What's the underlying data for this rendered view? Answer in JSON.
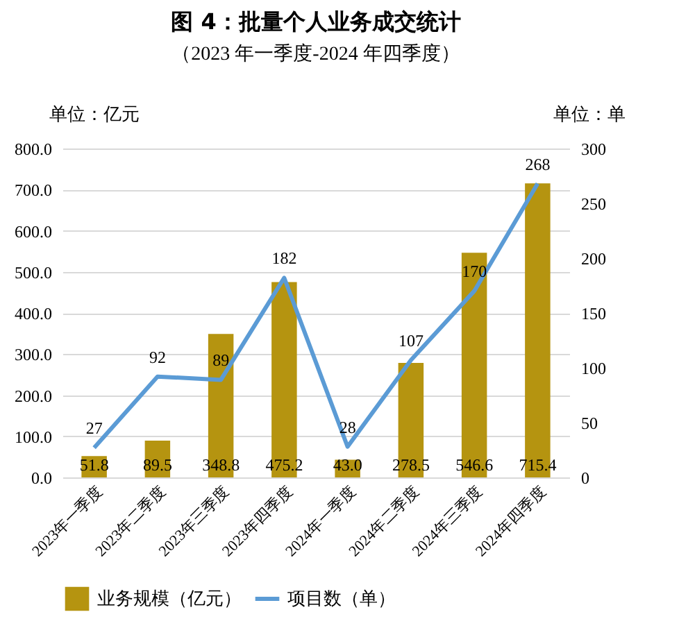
{
  "chart_data": {
    "type": "bar",
    "title": "图 4：批量个人业务成交统计",
    "subtitle": "（2023 年一季度-2024 年四季度）",
    "ylabel": "单位：亿元",
    "y2label": "单位：单",
    "categories": [
      "2023年一季度",
      "2023年二季度",
      "2023年三季度",
      "2023年四季度",
      "2024年一季度",
      "2024年二季度",
      "2024年三季度",
      "2024年四季度"
    ],
    "series": [
      {
        "name": "业务规模（亿元）",
        "type": "bar",
        "color": "#b59410",
        "values": [
          51.8,
          89.5,
          348.8,
          475.2,
          43.0,
          278.5,
          546.6,
          715.4
        ],
        "value_labels": [
          "51.8",
          "89.5",
          "348.8",
          "475.2",
          "43.0",
          "278.5",
          "546.6",
          "715.4"
        ]
      },
      {
        "name": "项目数（单）",
        "type": "line",
        "axis": "y2",
        "color": "#5b9bd5",
        "values": [
          27,
          92,
          89,
          182,
          28,
          107,
          170,
          268
        ]
      }
    ],
    "data_labels": true,
    "ylim": [
      0,
      800
    ],
    "yticks": [
      {
        "value": 0,
        "label": "0.0"
      },
      {
        "value": 100,
        "label": "100.0"
      },
      {
        "value": 200,
        "label": "200.0"
      },
      {
        "value": 300,
        "label": "300.0"
      },
      {
        "value": 400,
        "label": "400.0"
      },
      {
        "value": 500,
        "label": "500.0"
      },
      {
        "value": 600,
        "label": "600.0"
      },
      {
        "value": 700,
        "label": "700.0"
      },
      {
        "value": 800,
        "label": "800.0"
      }
    ],
    "y2lim": [
      0,
      300
    ],
    "y2ticks": [
      0,
      50,
      100,
      150,
      200,
      250,
      300
    ],
    "grid": "y",
    "legend": "bottom"
  }
}
